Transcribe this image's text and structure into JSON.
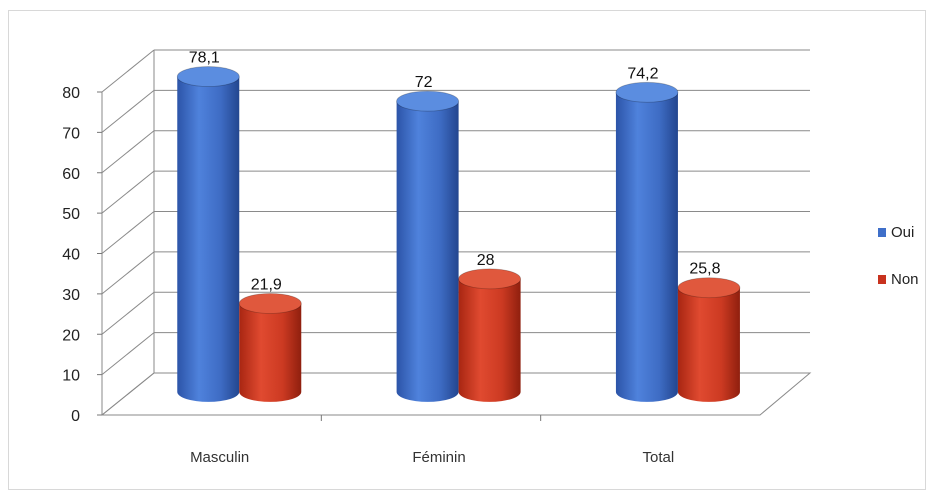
{
  "chart_data": {
    "type": "bar",
    "categories": [
      "Masculin",
      "Féminin",
      "Total"
    ],
    "series": [
      {
        "name": "Oui",
        "values": [
          78.1,
          72,
          74.2
        ],
        "value_labels": [
          "78,1",
          "72",
          "74,2"
        ],
        "color": "#3f6fc9"
      },
      {
        "name": "Non",
        "values": [
          21.9,
          28,
          25.8
        ],
        "value_labels": [
          "21,9",
          "28",
          "25,8"
        ],
        "color": "#c8321e"
      }
    ],
    "yticks": [
      "0",
      "10",
      "20",
      "30",
      "40",
      "50",
      "60",
      "70",
      "80"
    ],
    "ylim": [
      0,
      80
    ],
    "grid": true,
    "legend_position": "right",
    "style": "3d-cylinder"
  }
}
